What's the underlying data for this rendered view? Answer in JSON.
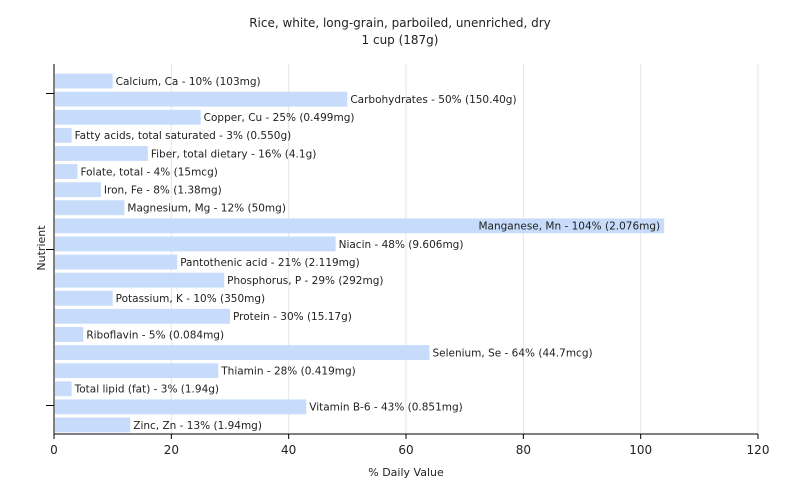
{
  "chart_data": {
    "type": "bar",
    "orientation": "horizontal",
    "title": "Rice, white, long-grain, parboiled, unenriched, dry",
    "subtitle": "1 cup (187g)",
    "xlabel": "% Daily Value",
    "ylabel": "Nutrient",
    "xlim": [
      0,
      120
    ],
    "xticks": [
      0,
      20,
      40,
      60,
      80,
      100,
      120
    ],
    "grid": "vertical",
    "bar_color": "#c6dcfa",
    "categories": [
      "Calcium, Ca",
      "Carbohydrates",
      "Copper, Cu",
      "Fatty acids, total saturated",
      "Fiber, total dietary",
      "Folate, total",
      "Iron, Fe",
      "Magnesium, Mg",
      "Manganese, Mn",
      "Niacin",
      "Pantothenic acid",
      "Phosphorus, P",
      "Potassium, K",
      "Protein",
      "Riboflavin",
      "Selenium, Se",
      "Thiamin",
      "Total lipid (fat)",
      "Vitamin B-6",
      "Zinc, Zn"
    ],
    "values": [
      10,
      50,
      25,
      3,
      16,
      4,
      8,
      12,
      104,
      48,
      21,
      29,
      10,
      30,
      5,
      64,
      28,
      3,
      43,
      13
    ],
    "labels": [
      "Calcium, Ca - 10% (103mg)",
      "Carbohydrates - 50% (150.40g)",
      "Copper, Cu - 25% (0.499mg)",
      "Fatty acids, total saturated - 3% (0.550g)",
      "Fiber, total dietary - 16% (4.1g)",
      "Folate, total - 4% (15mcg)",
      "Iron, Fe - 8% (1.38mg)",
      "Magnesium, Mg - 12% (50mg)",
      "Manganese, Mn - 104% (2.076mg)",
      "Niacin - 48% (9.606mg)",
      "Pantothenic acid - 21% (2.119mg)",
      "Phosphorus, P - 29% (292mg)",
      "Potassium, K - 10% (350mg)",
      "Protein - 30% (15.17g)",
      "Riboflavin - 5% (0.084mg)",
      "Selenium, Se - 64% (44.7mcg)",
      "Thiamin - 28% (0.419mg)",
      "Total lipid (fat) - 3% (1.94g)",
      "Vitamin B-6 - 43% (0.851mg)",
      "Zinc, Zn - 13% (1.94mg)"
    ]
  }
}
